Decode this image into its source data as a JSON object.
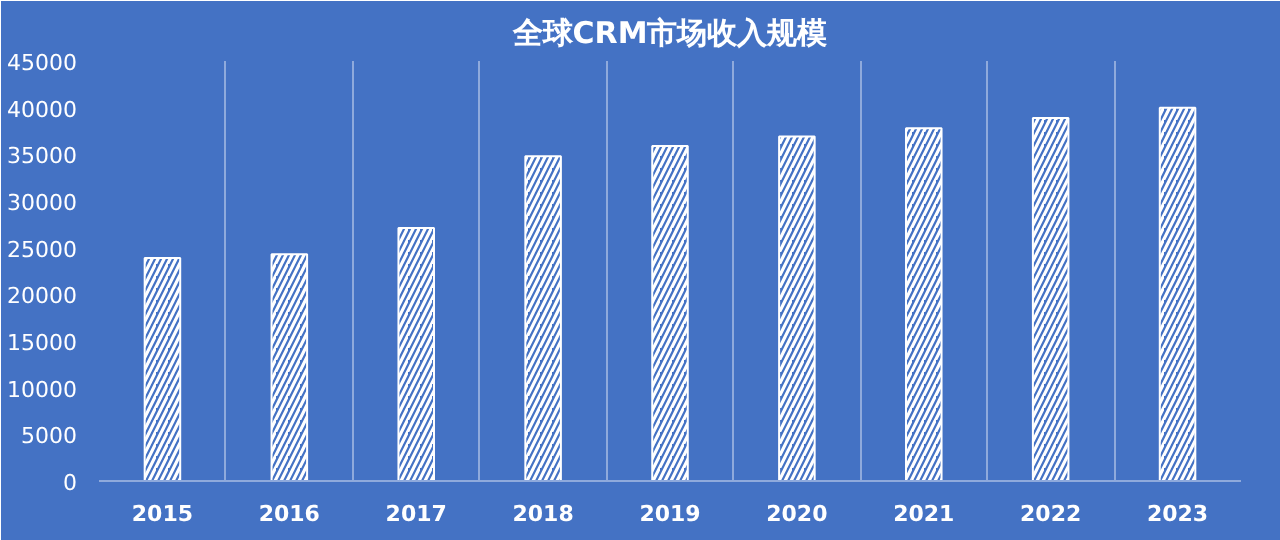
{
  "chart_data": {
    "type": "bar",
    "title": "全球CRM市场收入规模",
    "categories": [
      "2015",
      "2016",
      "2017",
      "2018",
      "2019",
      "2020",
      "2021",
      "2022",
      "2023"
    ],
    "values": [
      23900,
      24300,
      27100,
      34800,
      35900,
      36900,
      37800,
      38900,
      40000
    ],
    "color": "#ffffff",
    "ylim": [
      0,
      45000
    ],
    "yticks": [
      0,
      5000,
      10000,
      15000,
      20000,
      25000,
      30000,
      35000,
      40000,
      45000
    ],
    "grid": "x"
  }
}
